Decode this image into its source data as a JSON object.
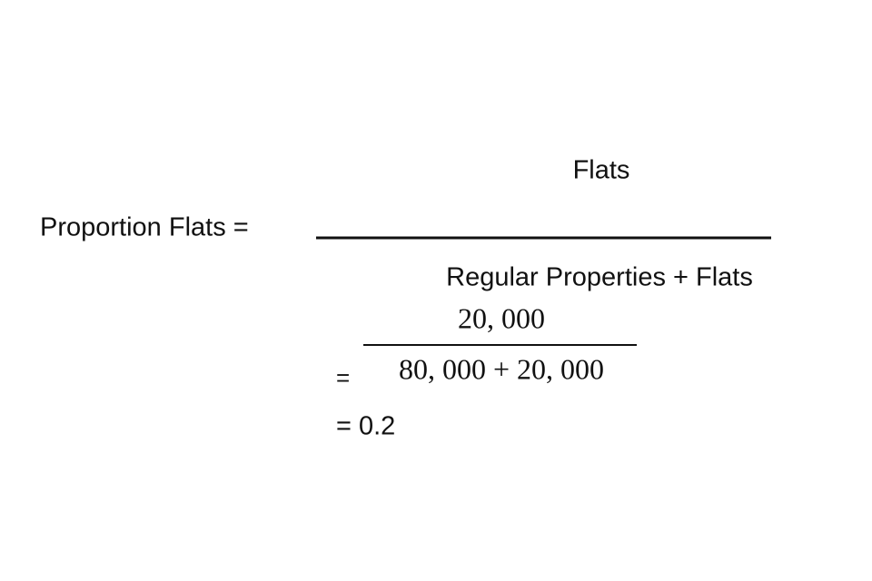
{
  "formula": {
    "lhs": "Proportion Flats =",
    "numerator": "Flats",
    "denominator": "Regular Properties + Flats"
  },
  "substitution": {
    "numerator": "20, 000",
    "equals": "=",
    "denominator": "80, 000 + 20, 000"
  },
  "result": "= 0.2"
}
